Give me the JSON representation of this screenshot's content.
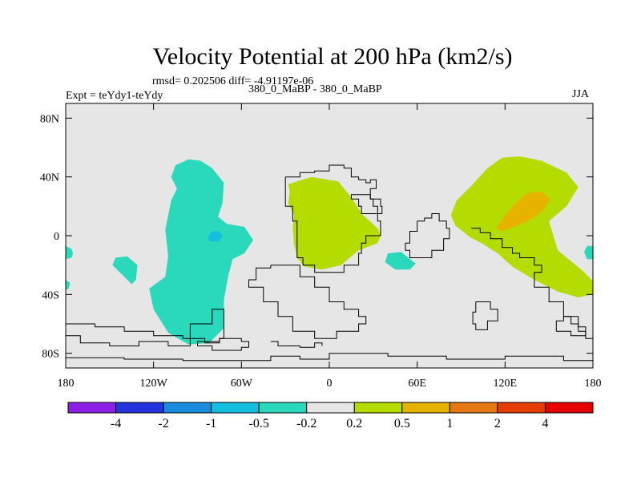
{
  "chart_data": {
    "type": "heatmap",
    "title": "Velocity Potential at 200 hPa (km2/s)",
    "stats_label": "rmsd= 0.202506 diff= -4.91197e-06",
    "experiment_label": "Expt = teYdy1-teYdy",
    "subtitle": "380_0_MaBP - 380_0_MaBP",
    "season": "JJA",
    "xlim": [
      -180,
      180
    ],
    "ylim": [
      -90,
      90
    ],
    "x_ticks": [
      {
        "value": -180,
        "label": "180"
      },
      {
        "value": -120,
        "label": "120W"
      },
      {
        "value": -60,
        "label": "60W"
      },
      {
        "value": 0,
        "label": "0"
      },
      {
        "value": 60,
        "label": "60E"
      },
      {
        "value": 120,
        "label": "120E"
      },
      {
        "value": 180,
        "label": "180"
      }
    ],
    "y_ticks": [
      {
        "value": 80,
        "label": "80N"
      },
      {
        "value": 40,
        "label": "40N"
      },
      {
        "value": 0,
        "label": "0"
      },
      {
        "value": -40,
        "label": "40S"
      },
      {
        "value": -80,
        "label": "80S"
      }
    ],
    "colorbar": {
      "colors": [
        "#8c1ee6",
        "#2232dc",
        "#1a8ce0",
        "#14bede",
        "#2ad8bc",
        "#e6e6e6",
        "#b4dc00",
        "#e6b400",
        "#e67814",
        "#e63c00",
        "#e60000"
      ],
      "labels": [
        "-4",
        "-2",
        "-1",
        "-0.5",
        "-0.2",
        "0.2",
        "0.5",
        "1",
        "2",
        "4"
      ]
    },
    "regions": [
      {
        "name": "negative-region-pacific-east",
        "level": 4,
        "color": "#2ad8bc",
        "points": [
          [
            -105,
            48
          ],
          [
            -96,
            52
          ],
          [
            -88,
            51
          ],
          [
            -80,
            46
          ],
          [
            -72,
            36
          ],
          [
            -73,
            22
          ],
          [
            -76,
            13
          ],
          [
            -70,
            8
          ],
          [
            -58,
            6
          ],
          [
            -52,
            -3
          ],
          [
            -58,
            -12
          ],
          [
            -66,
            -16
          ],
          [
            -69,
            -27
          ],
          [
            -72,
            -44
          ],
          [
            -72,
            -63
          ],
          [
            -82,
            -73
          ],
          [
            -96,
            -74
          ],
          [
            -110,
            -66
          ],
          [
            -120,
            -50
          ],
          [
            -123,
            -36
          ],
          [
            -112,
            -28
          ],
          [
            -110,
            -14
          ],
          [
            -112,
            4
          ],
          [
            -108,
            24
          ],
          [
            -104,
            32
          ],
          [
            -108,
            40
          ]
        ]
      },
      {
        "name": "negative-region-pacific-core",
        "level": 3,
        "color": "#14bede",
        "points": [
          [
            -80,
            3
          ],
          [
            -75,
            3
          ],
          [
            -73,
            0
          ],
          [
            -75,
            -4
          ],
          [
            -81,
            -4
          ],
          [
            -83,
            -1
          ]
        ]
      },
      {
        "name": "negative-region-south-pacific",
        "level": 4,
        "color": "#2ad8bc",
        "points": [
          [
            -146,
            -15
          ],
          [
            -138,
            -14
          ],
          [
            -131,
            -20
          ],
          [
            -132,
            -30
          ],
          [
            -135,
            -33
          ],
          [
            -140,
            -28
          ],
          [
            -148,
            -20
          ]
        ]
      },
      {
        "name": "negative-region-indian-ocean",
        "level": 4,
        "color": "#2ad8bc",
        "points": [
          [
            40,
            -12
          ],
          [
            49,
            -11
          ],
          [
            59,
            -19
          ],
          [
            55,
            -23
          ],
          [
            45,
            -23
          ],
          [
            38,
            -18
          ]
        ]
      },
      {
        "name": "negative-region-east-edge",
        "level": 4,
        "color": "#2ad8bc",
        "points": [
          [
            180,
            -7
          ],
          [
            176,
            -7
          ],
          [
            174,
            -11
          ],
          [
            176,
            -16
          ],
          [
            180,
            -16
          ]
        ]
      },
      {
        "name": "negative-region-west-edge",
        "level": 4,
        "color": "#2ad8bc",
        "points": [
          [
            -180,
            -7
          ],
          [
            -176,
            -9
          ],
          [
            -175,
            -12
          ],
          [
            -176,
            -15
          ],
          [
            -180,
            -16
          ]
        ]
      },
      {
        "name": "negative-region-west-small",
        "level": 4,
        "color": "#2ad8bc",
        "points": [
          [
            -180,
            -30
          ],
          [
            -177,
            -32
          ],
          [
            -178,
            -36
          ],
          [
            -180,
            -37
          ]
        ]
      },
      {
        "name": "positive-region-africa",
        "level": 6,
        "color": "#b4dc00",
        "points": [
          [
            -28,
            35
          ],
          [
            -12,
            40
          ],
          [
            6,
            37
          ],
          [
            15,
            26
          ],
          [
            23,
            14
          ],
          [
            33,
            5
          ],
          [
            35,
            0
          ],
          [
            33,
            -5
          ],
          [
            20,
            -10
          ],
          [
            8,
            -20
          ],
          [
            -5,
            -23
          ],
          [
            -17,
            -21
          ],
          [
            -22,
            -15
          ],
          [
            -24,
            -6
          ],
          [
            -25,
            5
          ],
          [
            -24,
            14
          ],
          [
            -28,
            22
          ],
          [
            -27,
            30
          ]
        ]
      },
      {
        "name": "positive-region-asia",
        "level": 6,
        "color": "#b4dc00",
        "points": [
          [
            108,
            46
          ],
          [
            118,
            53
          ],
          [
            130,
            54
          ],
          [
            145,
            51
          ],
          [
            162,
            43
          ],
          [
            170,
            33
          ],
          [
            162,
            20
          ],
          [
            150,
            10
          ],
          [
            156,
            -10
          ],
          [
            172,
            -23
          ],
          [
            180,
            -31
          ],
          [
            180,
            -40
          ],
          [
            170,
            -42
          ],
          [
            156,
            -38
          ],
          [
            140,
            -30
          ],
          [
            125,
            -21
          ],
          [
            115,
            -12
          ],
          [
            104,
            -5
          ],
          [
            96,
            -1
          ],
          [
            86,
            7
          ],
          [
            83,
            14
          ],
          [
            87,
            24
          ],
          [
            97,
            34
          ]
        ]
      },
      {
        "name": "positive-region-asia-core",
        "level": 7,
        "color": "#e6b400",
        "points": [
          [
            135,
            29
          ],
          [
            145,
            30
          ],
          [
            151,
            25
          ],
          [
            146,
            17
          ],
          [
            136,
            10
          ],
          [
            126,
            6
          ],
          [
            118,
            3
          ],
          [
            114,
            5
          ],
          [
            118,
            11
          ],
          [
            126,
            21
          ]
        ]
      }
    ],
    "coastlines": [
      [
        [
          -30,
          40
        ],
        [
          -20,
          43
        ],
        [
          -10,
          44
        ],
        [
          0,
          48
        ],
        [
          10,
          46
        ],
        [
          15,
          40
        ],
        [
          20,
          38
        ],
        [
          25,
          36
        ],
        [
          28,
          38
        ],
        [
          32,
          32
        ],
        [
          28,
          25
        ],
        [
          30,
          20
        ],
        [
          33,
          10
        ],
        [
          35,
          5
        ],
        [
          35,
          0
        ],
        [
          25,
          -5
        ],
        [
          22,
          -12
        ],
        [
          20,
          -20
        ],
        [
          10,
          -25
        ],
        [
          0,
          -25
        ],
        [
          -10,
          -20
        ],
        [
          -18,
          -15
        ],
        [
          -22,
          -5
        ],
        [
          -22,
          10
        ],
        [
          -25,
          20
        ],
        [
          -30,
          30
        ],
        [
          -30,
          40
        ]
      ],
      [
        [
          15,
          25
        ],
        [
          20,
          20
        ],
        [
          22,
          15
        ],
        [
          35,
          15
        ],
        [
          36,
          20
        ],
        [
          35,
          25
        ],
        [
          28,
          28
        ],
        [
          15,
          25
        ]
      ],
      [
        [
          97,
          5
        ],
        [
          103,
          2
        ],
        [
          110,
          -2
        ],
        [
          118,
          -8
        ],
        [
          125,
          -12
        ],
        [
          130,
          -15
        ],
        [
          140,
          -20
        ],
        [
          145,
          -25
        ],
        [
          140,
          -35
        ],
        [
          150,
          -45
        ],
        [
          160,
          -55
        ],
        [
          165,
          -60
        ],
        [
          170,
          -65
        ],
        [
          175,
          -70
        ],
        [
          180,
          -70
        ]
      ],
      [
        [
          -40,
          -20
        ],
        [
          -20,
          -28
        ],
        [
          -10,
          -35
        ],
        [
          0,
          -45
        ],
        [
          10,
          -50
        ],
        [
          20,
          -55
        ],
        [
          25,
          -60
        ],
        [
          20,
          -65
        ],
        [
          5,
          -70
        ],
        [
          -10,
          -65
        ],
        [
          -25,
          -55
        ],
        [
          -35,
          -45
        ],
        [
          -45,
          -35
        ],
        [
          -55,
          -30
        ],
        [
          -50,
          -22
        ],
        [
          -40,
          -20
        ]
      ],
      [
        [
          -180,
          -60
        ],
        [
          -160,
          -62
        ],
        [
          -140,
          -65
        ],
        [
          -120,
          -68
        ],
        [
          -100,
          -70
        ],
        [
          -85,
          -73
        ],
        [
          -75,
          -70
        ],
        [
          -72,
          -62
        ],
        [
          -72,
          -50
        ],
        [
          -80,
          -60
        ],
        [
          -95,
          -75
        ],
        [
          -110,
          -72
        ],
        [
          -130,
          -75
        ],
        [
          -150,
          -73
        ],
        [
          -170,
          -68
        ],
        [
          -180,
          -68
        ]
      ],
      [
        [
          -180,
          -83
        ],
        [
          -140,
          -84
        ],
        [
          -100,
          -85
        ],
        [
          -60,
          -85
        ],
        [
          -40,
          -82
        ],
        [
          -20,
          -84
        ],
        [
          0,
          -80
        ],
        [
          40,
          -82
        ],
        [
          80,
          -84
        ],
        [
          120,
          -82
        ],
        [
          160,
          -85
        ],
        [
          180,
          -85
        ]
      ],
      [
        [
          -40,
          -72
        ],
        [
          -35,
          -75
        ],
        [
          -20,
          -76
        ],
        [
          -10,
          -73
        ],
        [
          -5,
          -75
        ]
      ],
      [
        [
          100,
          -45
        ],
        [
          110,
          -50
        ],
        [
          115,
          -58
        ],
        [
          108,
          -64
        ],
        [
          100,
          -60
        ],
        [
          98,
          -52
        ],
        [
          100,
          -45
        ]
      ],
      [
        [
          155,
          -65
        ],
        [
          165,
          -68
        ],
        [
          175,
          -62
        ],
        [
          170,
          -55
        ],
        [
          160,
          -58
        ],
        [
          155,
          -65
        ]
      ],
      [
        [
          -90,
          -75
        ],
        [
          -80,
          -78
        ],
        [
          -70,
          -78
        ],
        [
          -60,
          -76
        ],
        [
          -55,
          -72
        ],
        [
          -60,
          -70
        ],
        [
          -75,
          -72
        ],
        [
          -90,
          -75
        ]
      ],
      [
        [
          60,
          10
        ],
        [
          65,
          12
        ],
        [
          70,
          15
        ],
        [
          75,
          10
        ],
        [
          80,
          5
        ],
        [
          82,
          -2
        ],
        [
          78,
          -10
        ],
        [
          70,
          -15
        ],
        [
          60,
          -15
        ],
        [
          55,
          -10
        ],
        [
          52,
          -5
        ],
        [
          55,
          3
        ],
        [
          60,
          10
        ]
      ]
    ]
  }
}
